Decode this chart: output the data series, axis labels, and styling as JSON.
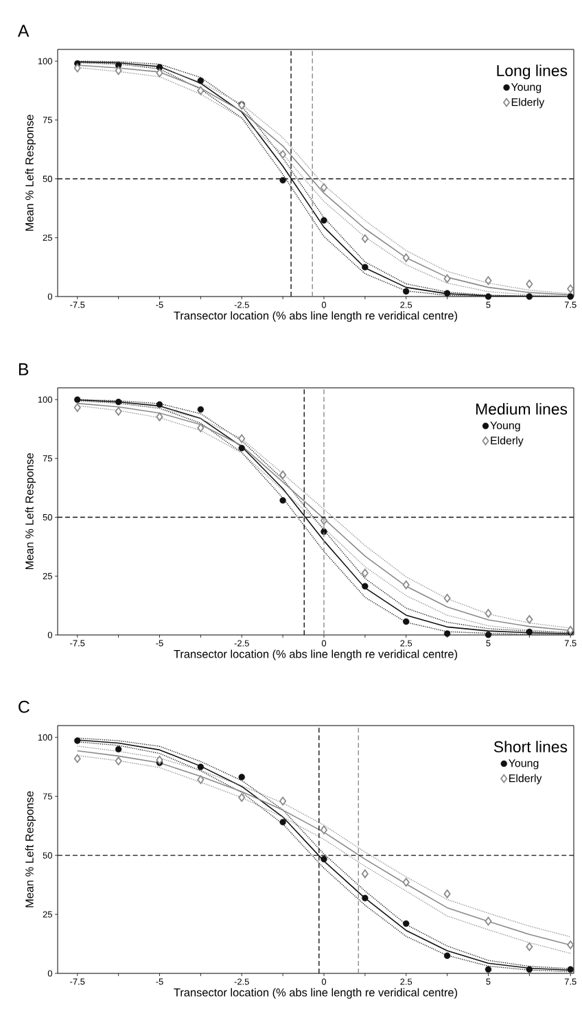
{
  "chart_data": [
    {
      "type": "line",
      "title": "A",
      "xlabel": "Transector location (% abs line length re veridical centre)",
      "ylabel": "Mean % Left Response",
      "legend_title": "Long lines",
      "legend": "top right",
      "x": [
        -7.5,
        -6.25,
        -5,
        -3.75,
        -2.5,
        -1.25,
        0,
        1.25,
        2.5,
        3.75,
        5,
        6.25,
        7.5
      ],
      "xlim": [
        -8.1,
        7.6
      ],
      "ylim": [
        0,
        105
      ],
      "xticks": [
        -7.5,
        {
          "value": -6.25,
          "label": null
        },
        -5,
        {
          "value": -3.75,
          "label": null
        },
        -2.5,
        {
          "value": -1.25,
          "label": null
        },
        0,
        {
          "value": 1.25,
          "label": null
        },
        2.5,
        {
          "value": 3.75,
          "label": null
        },
        5,
        {
          "value": 6.25,
          "label": null
        },
        7.5
      ],
      "yticks": [
        0,
        25,
        50,
        75,
        100
      ],
      "series": [
        {
          "type": "line",
          "color": "#111111",
          "line_style": "solid",
          "marker": "none",
          "values": [
            99.7,
            99.3,
            97.7,
            90.6,
            78.4,
            55.4,
            29.5,
            12.2,
            3.9,
            1.2,
            0.3,
            0.1,
            0
          ]
        },
        {
          "type": "line",
          "color": "#111111",
          "line_style": "dotted",
          "marker": "none",
          "values": [
            99.4,
            98.8,
            96.7,
            88.1,
            75.9,
            51.9,
            25.5,
            9.7,
            2.4,
            0.5,
            0,
            0,
            0
          ]
        },
        {
          "type": "line",
          "color": "#111111",
          "line_style": "dotted",
          "marker": "none",
          "values": [
            100,
            99.8,
            98.7,
            93.1,
            80.9,
            58.9,
            33.5,
            14.7,
            5.4,
            1.9,
            0.6,
            0.2,
            0
          ]
        },
        {
          "type": "line",
          "color": "#8a8a8a",
          "line_style": "solid",
          "marker": "none",
          "values": [
            98.3,
            97.1,
            95.4,
            88.5,
            78.7,
            64,
            43.9,
            28.8,
            16.5,
            8.2,
            3.9,
            1.7,
            0.7
          ]
        },
        {
          "type": "line",
          "color": "#8a8a8a",
          "line_style": "dotted",
          "marker": "none",
          "values": [
            97.3,
            95.6,
            93.4,
            86,
            75.7,
            60.5,
            40.4,
            25.3,
            13.5,
            5.7,
            2.1,
            0.7,
            0.2
          ]
        },
        {
          "type": "line",
          "color": "#8a8a8a",
          "line_style": "dotted",
          "marker": "none",
          "values": [
            99.3,
            98.6,
            97.4,
            91,
            81.7,
            67.5,
            47.4,
            32.3,
            19.5,
            10.7,
            5.7,
            2.7,
            1.2
          ]
        },
        {
          "type": "scatter",
          "name": "Young",
          "color": "#111111",
          "marker": "circle",
          "values": [
            99,
            98.3,
            97.4,
            91.7,
            81.6,
            49.4,
            32.4,
            12.5,
            2.2,
            1.4,
            0,
            0,
            0
          ]
        },
        {
          "type": "scatter",
          "name": "Elderly",
          "color": "#8a8a8a",
          "marker": "diamond",
          "values": [
            97.1,
            96,
            95,
            87.5,
            81.3,
            60.4,
            46.3,
            24.6,
            16.5,
            7.6,
            6.8,
            5.3,
            3.3
          ]
        }
      ],
      "ref_lines": [
        {
          "axis": "x",
          "value": -1.0,
          "color": "#111111",
          "line_style": "dashed"
        },
        {
          "axis": "x",
          "value": -0.35,
          "color": "#8a8a8a",
          "line_style": "dashed"
        },
        {
          "axis": "y",
          "value": 50,
          "color": "#111111",
          "line_style": "dashed"
        }
      ]
    },
    {
      "type": "line",
      "title": "B",
      "xlabel": "Transector location (% abs line length re veridical centre)",
      "ylabel": "Mean % Left Response",
      "legend_title": "Medium lines",
      "legend": "top right",
      "x": [
        -7.5,
        -6.25,
        -5,
        -3.75,
        -2.5,
        -1.25,
        0,
        1.25,
        2.5,
        3.75,
        5,
        6.25,
        7.5
      ],
      "xlim": [
        -8.1,
        7.6
      ],
      "ylim": [
        0,
        105
      ],
      "xticks": [
        -7.5,
        {
          "value": -6.25,
          "label": null
        },
        -5,
        {
          "value": -3.75,
          "label": null
        },
        -2.5,
        {
          "value": -1.25,
          "label": null
        },
        0,
        {
          "value": 1.25,
          "label": null
        },
        2.5,
        {
          "value": 3.75,
          "label": null
        },
        5,
        {
          "value": 6.25,
          "label": null
        },
        7.5
      ],
      "yticks": [
        0,
        25,
        50,
        75,
        100
      ],
      "series": [
        {
          "type": "line",
          "color": "#111111",
          "line_style": "solid",
          "marker": "none",
          "values": [
            99.9,
            99,
            97.3,
            92,
            80,
            62.2,
            40,
            20,
            8.4,
            3.4,
            1.7,
            0.9,
            0.6
          ]
        },
        {
          "type": "line",
          "color": "#111111",
          "line_style": "dotted",
          "marker": "none",
          "values": [
            99.6,
            98.5,
            96.3,
            90,
            77.5,
            58.2,
            35.5,
            16,
            5.4,
            1.4,
            0.7,
            0.2,
            0.1
          ]
        },
        {
          "type": "line",
          "color": "#111111",
          "line_style": "dotted",
          "marker": "none",
          "values": [
            100,
            99.5,
            98.3,
            94,
            82.5,
            66.2,
            44.5,
            24,
            11.4,
            5.4,
            2.7,
            1.6,
            1.1
          ]
        },
        {
          "type": "line",
          "color": "#8a8a8a",
          "line_style": "solid",
          "marker": "none",
          "values": [
            98.4,
            96.9,
            94.3,
            89.4,
            80.4,
            65,
            49.4,
            33.5,
            20.7,
            11.9,
            6.4,
            3.6,
            1.9
          ]
        },
        {
          "type": "line",
          "color": "#8a8a8a",
          "line_style": "dotted",
          "marker": "none",
          "values": [
            97.4,
            95.4,
            92.3,
            86.9,
            77.4,
            61.5,
            45.4,
            29,
            16.7,
            8.4,
            3.9,
            2.1,
            0.9
          ]
        },
        {
          "type": "line",
          "color": "#8a8a8a",
          "line_style": "dotted",
          "marker": "none",
          "values": [
            99.4,
            98.4,
            96.3,
            91.9,
            83.4,
            68.5,
            53.4,
            38,
            24.7,
            15.4,
            8.9,
            5.1,
            2.9
          ]
        },
        {
          "type": "scatter",
          "name": "Young",
          "color": "#111111",
          "marker": "circle",
          "values": [
            100,
            99,
            97.9,
            95.8,
            79.4,
            57.2,
            43.9,
            20.7,
            5.7,
            0.6,
            0.1,
            1.3,
            1.3
          ]
        },
        {
          "type": "scatter",
          "name": "Elderly",
          "color": "#8a8a8a",
          "marker": "diamond",
          "values": [
            96.6,
            95,
            92.7,
            88,
            83.4,
            68,
            48.6,
            26.3,
            21.3,
            15.6,
            9.2,
            6.6,
            2
          ]
        }
      ],
      "ref_lines": [
        {
          "axis": "x",
          "value": -0.6,
          "color": "#111111",
          "line_style": "dashed"
        },
        {
          "axis": "x",
          "value": 0,
          "color": "#8a8a8a",
          "line_style": "dashed"
        },
        {
          "axis": "y",
          "value": 50,
          "color": "#111111",
          "line_style": "dashed"
        }
      ]
    },
    {
      "type": "line",
      "title": "C",
      "xlabel": "Transector location (% abs line length re veridical centre)",
      "ylabel": "Mean % Left Response",
      "legend_title": "Short lines",
      "legend": "top right",
      "x": [
        -7.5,
        -6.25,
        -5,
        -3.75,
        -2.5,
        -1.25,
        0,
        1.25,
        2.5,
        3.75,
        5,
        6.25,
        7.5
      ],
      "xlim": [
        -8.1,
        7.6
      ],
      "ylim": [
        0,
        105
      ],
      "xticks": [
        -7.5,
        {
          "value": -6.25,
          "label": null
        },
        -5,
        {
          "value": -3.75,
          "label": null
        },
        -2.5,
        {
          "value": -1.25,
          "label": null
        },
        0,
        {
          "value": 1.25,
          "label": null
        },
        2.5,
        {
          "value": 3.75,
          "label": null
        },
        5,
        {
          "value": 6.25,
          "label": null
        },
        7.5
      ],
      "yticks": [
        0,
        25,
        50,
        75,
        100
      ],
      "series": [
        {
          "type": "line",
          "color": "#111111",
          "line_style": "solid",
          "marker": "none",
          "values": [
            98.9,
            97.6,
            94.7,
            87.8,
            79.2,
            66.3,
            47.6,
            31.9,
            18.2,
            9.6,
            4.3,
            2.2,
            1.4
          ]
        },
        {
          "type": "line",
          "color": "#111111",
          "line_style": "dotted",
          "marker": "none",
          "values": [
            98.1,
            96.6,
            93.2,
            85.8,
            76.7,
            63.3,
            44.6,
            28.9,
            15.7,
            7.6,
            3.1,
            1.4,
            0.8
          ]
        },
        {
          "type": "line",
          "color": "#111111",
          "line_style": "dotted",
          "marker": "none",
          "values": [
            99.7,
            98.6,
            96.2,
            89.8,
            81.7,
            69.3,
            50.6,
            34.9,
            20.7,
            11.6,
            5.5,
            3,
            2
          ]
        },
        {
          "type": "line",
          "color": "#8a8a8a",
          "line_style": "solid",
          "marker": "none",
          "values": [
            94.3,
            92.1,
            89.2,
            83.5,
            77,
            69.2,
            59.8,
            48.4,
            37.9,
            27.8,
            22,
            16.5,
            12
          ]
        },
        {
          "type": "line",
          "color": "#8a8a8a",
          "line_style": "dotted",
          "marker": "none",
          "values": [
            92.3,
            90.1,
            87.2,
            81,
            74.5,
            66.2,
            56.8,
            45.4,
            34.9,
            24.3,
            18.5,
            13,
            8.5
          ]
        },
        {
          "type": "line",
          "color": "#8a8a8a",
          "line_style": "dotted",
          "marker": "none",
          "values": [
            96.3,
            94.1,
            91.2,
            86,
            79.5,
            72.2,
            62.8,
            51.4,
            40.9,
            31.3,
            25.5,
            20,
            15.5
          ]
        },
        {
          "type": "scatter",
          "name": "Young",
          "color": "#111111",
          "marker": "circle",
          "values": [
            98.6,
            95,
            89.2,
            87.5,
            83.2,
            64.1,
            48.4,
            31.9,
            21.1,
            7.5,
            1.7,
            1.7,
            1.7
          ]
        },
        {
          "type": "scatter",
          "name": "Elderly",
          "color": "#8a8a8a",
          "marker": "diamond",
          "values": [
            91,
            90,
            90.4,
            82.1,
            74.5,
            73,
            60.8,
            42.2,
            38.6,
            33.7,
            22.1,
            11.3,
            12.1
          ]
        }
      ],
      "ref_lines": [
        {
          "axis": "x",
          "value": -0.15,
          "color": "#111111",
          "line_style": "dashed"
        },
        {
          "axis": "x",
          "value": 1.05,
          "color": "#8a8a8a",
          "line_style": "dashed"
        },
        {
          "axis": "y",
          "value": 50,
          "color": "#111111",
          "line_style": "dashed"
        }
      ]
    }
  ]
}
